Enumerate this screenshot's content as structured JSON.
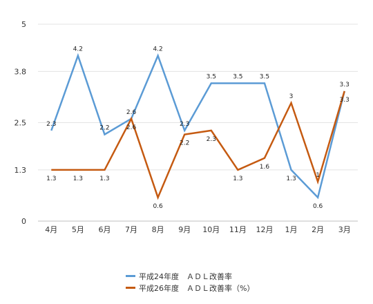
{
  "chart_data": {
    "type": "line",
    "categories": [
      "4月",
      "5月",
      "6月",
      "7月",
      "8月",
      "9月",
      "10月",
      "11月",
      "12月",
      "1月",
      "2月",
      "3月"
    ],
    "series": [
      {
        "name": "平成24年度　ＡＤＬ改善率",
        "color": "#5b9bd5",
        "values": [
          2.3,
          4.2,
          2.2,
          2.6,
          4.2,
          2.3,
          3.5,
          3.5,
          3.5,
          1.3,
          0.6,
          3.3
        ],
        "labels": [
          "2.3",
          "4.2",
          "2.2",
          "2.6",
          "4.2",
          "2.3",
          "3.5",
          "3.5",
          "3.5",
          "1.3",
          "0.6",
          "3.3"
        ]
      },
      {
        "name": "平成26年度　ＡＤＬ改善率（%）",
        "color": "#c55a11",
        "values": [
          1.3,
          1.3,
          1.3,
          2.6,
          0.6,
          2.2,
          2.3,
          1.3,
          1.6,
          3,
          1,
          3.3
        ],
        "labels": [
          "1.3",
          "1.3",
          "1.3",
          "2.6",
          "0.6",
          "2.2",
          "2.3",
          "1.3",
          "1.6",
          "3",
          "1",
          "3.3"
        ]
      }
    ],
    "yticks": [
      "0",
      "1.3",
      "2.5",
      "3.8",
      "5"
    ],
    "ylim": [
      0,
      5
    ],
    "grid": true,
    "legend_position": "bottom"
  }
}
